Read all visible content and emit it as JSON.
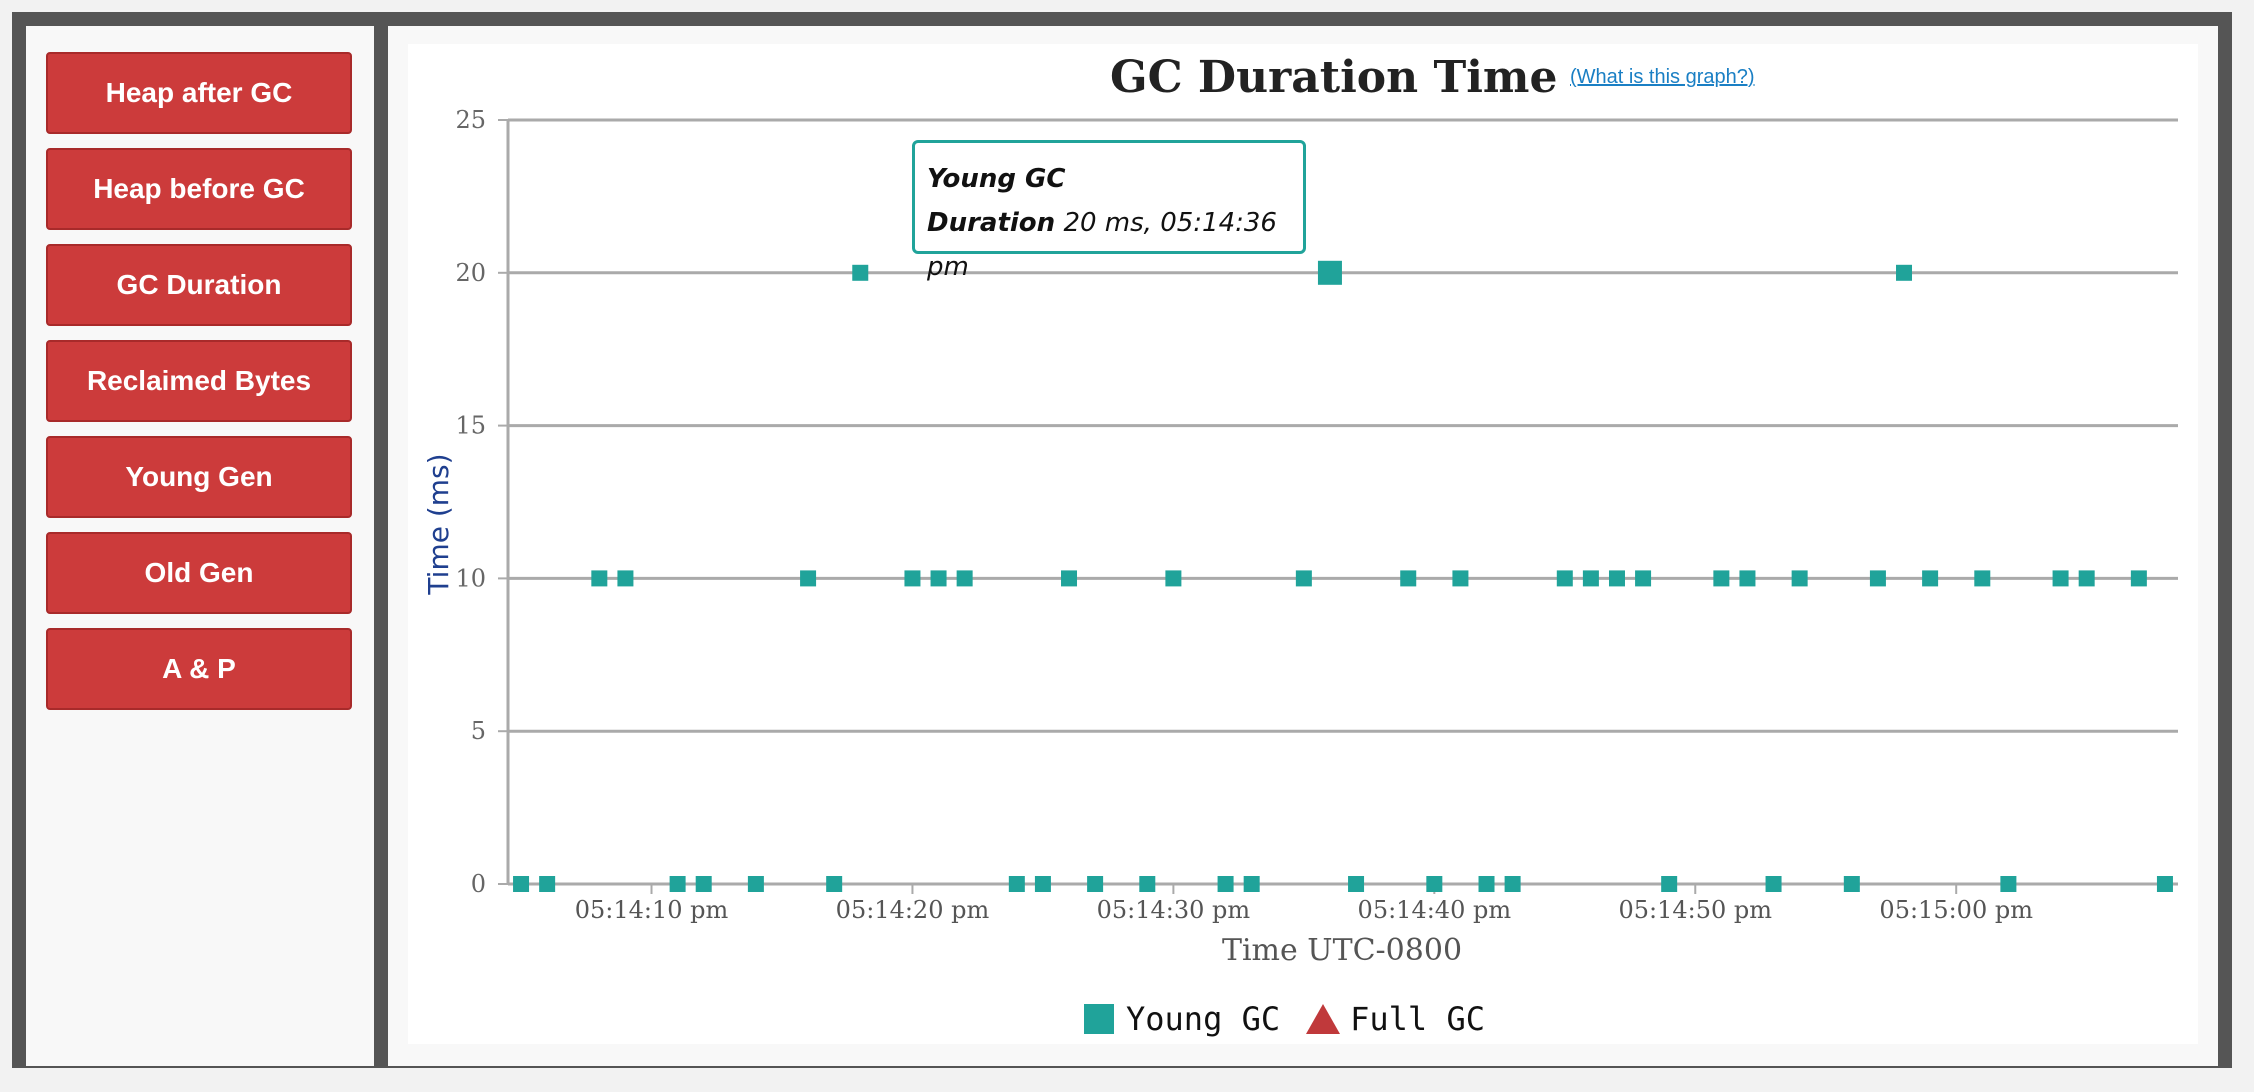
{
  "sidebar": {
    "buttons": [
      "Heap after GC",
      "Heap before GC",
      "GC Duration",
      "Reclaimed Bytes",
      "Young Gen",
      "Old Gen",
      "A & P"
    ]
  },
  "header": {
    "title": "GC Duration Time",
    "help_link": "(What is this graph?)"
  },
  "tooltip": {
    "series": "Young GC",
    "label": "Duration",
    "value": "20 ms, 05:14:36 pm"
  },
  "legend": {
    "young": "Young GC",
    "full": "Full GC"
  },
  "colors": {
    "young": "#20a39a",
    "full": "#c0393b",
    "ylabel": "#1f3f8f",
    "grid": "#aaaaaa"
  },
  "chart_data": {
    "type": "scatter",
    "title": "GC Duration Time",
    "xlabel": "Time UTC-0800",
    "ylabel": "Time (ms)",
    "ylim": [
      0,
      25
    ],
    "yticks": [
      0,
      5,
      10,
      15,
      20,
      25
    ],
    "xlim": [
      4.5,
      68.5
    ],
    "x_unit": "seconds after 05:14:00 pm",
    "xticks": [
      {
        "value": 10,
        "label": "05:14:10 pm"
      },
      {
        "value": 20,
        "label": "05:14:20 pm"
      },
      {
        "value": 30,
        "label": "05:14:30 pm"
      },
      {
        "value": 40,
        "label": "05:14:40 pm"
      },
      {
        "value": 50,
        "label": "05:14:50 pm"
      },
      {
        "value": 60,
        "label": "05:15:00 pm"
      }
    ],
    "grid": true,
    "legend_position": "bottom-center",
    "highlighted_point": {
      "x": 36,
      "y": 20
    },
    "series": [
      {
        "name": "Young GC",
        "marker": "square",
        "points": [
          [
            5,
            0
          ],
          [
            6,
            0
          ],
          [
            8,
            10
          ],
          [
            9,
            10
          ],
          [
            11,
            0
          ],
          [
            12,
            0
          ],
          [
            14,
            0
          ],
          [
            16,
            10
          ],
          [
            17,
            0
          ],
          [
            18,
            20
          ],
          [
            20,
            10
          ],
          [
            21,
            10
          ],
          [
            22,
            10
          ],
          [
            24,
            0
          ],
          [
            25,
            0
          ],
          [
            26,
            10
          ],
          [
            27,
            0
          ],
          [
            29,
            0
          ],
          [
            30,
            10
          ],
          [
            32,
            0
          ],
          [
            33,
            0
          ],
          [
            35,
            10
          ],
          [
            36,
            20
          ],
          [
            37,
            0
          ],
          [
            39,
            10
          ],
          [
            40,
            0
          ],
          [
            41,
            10
          ],
          [
            42,
            0
          ],
          [
            43,
            0
          ],
          [
            45,
            10
          ],
          [
            46,
            10
          ],
          [
            47,
            10
          ],
          [
            48,
            10
          ],
          [
            49,
            0
          ],
          [
            51,
            10
          ],
          [
            52,
            10
          ],
          [
            53,
            0
          ],
          [
            54,
            10
          ],
          [
            56,
            0
          ],
          [
            57,
            10
          ],
          [
            58,
            20
          ],
          [
            59,
            10
          ],
          [
            61,
            10
          ],
          [
            62,
            0
          ],
          [
            64,
            10
          ],
          [
            65,
            10
          ],
          [
            67,
            10
          ],
          [
            68,
            0
          ]
        ]
      },
      {
        "name": "Full GC",
        "marker": "triangle",
        "points": []
      }
    ]
  }
}
